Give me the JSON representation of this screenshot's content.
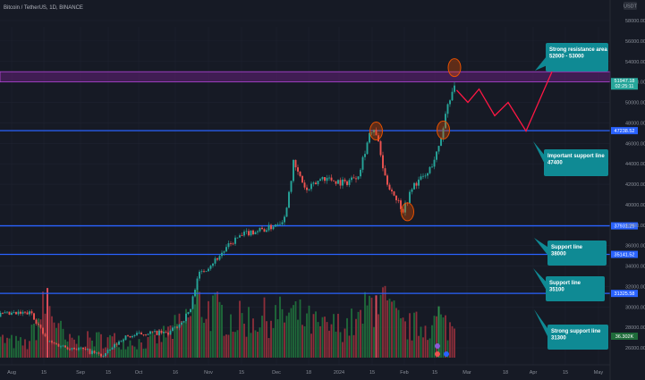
{
  "header": {
    "title": "Bitcoin / TetherUS, 1D, BINANCE",
    "currency": "USDT"
  },
  "colors": {
    "background": "#161a25",
    "up": "#26a69a",
    "down": "#ef5350",
    "volume_up": "#1f6b3a",
    "volume_down": "#8e2f3a",
    "support_line": "#2962ff",
    "resistance": "#8e24aa",
    "callout": "#0f8a94",
    "forecast": "#ff1744",
    "marker": "#e65100",
    "price_tag": "#26a69a",
    "grid": "#1f2330",
    "axis_text": "#8a8f99"
  },
  "chart_data": {
    "type": "candlestick",
    "symbol": "Bitcoin / TetherUS",
    "interval": "1D",
    "exchange": "BINANCE",
    "ylim": [
      26000,
      58000
    ],
    "y_ticks": [
      "58000.00",
      "56000.00",
      "54000.00",
      "52000.00",
      "50000.00",
      "48000.00",
      "46000.00",
      "44000.00",
      "42000.00",
      "40000.00",
      "38000.00",
      "36000.00",
      "34000.00",
      "32000.00",
      "30000.00",
      "28000.00",
      "26000.00"
    ],
    "x_ticks": [
      "Aug",
      "15",
      "Sep",
      "15",
      "Oct",
      "16",
      "Nov",
      "15",
      "Dec",
      "18",
      "2024",
      "15",
      "Feb",
      "15",
      "Mar",
      "18",
      "Apr",
      "15",
      "May"
    ],
    "price_series": [
      {
        "date": "2023-07-24",
        "price": 29200
      },
      {
        "date": "2023-08-01",
        "price": 29300
      },
      {
        "date": "2023-08-10",
        "price": 29400
      },
      {
        "date": "2023-08-17",
        "price": 26600
      },
      {
        "date": "2023-08-25",
        "price": 26100
      },
      {
        "date": "2023-09-01",
        "price": 25900
      },
      {
        "date": "2023-09-11",
        "price": 25200
      },
      {
        "date": "2023-09-20",
        "price": 27000
      },
      {
        "date": "2023-10-01",
        "price": 27500
      },
      {
        "date": "2023-10-10",
        "price": 27400
      },
      {
        "date": "2023-10-16",
        "price": 28500
      },
      {
        "date": "2023-10-20",
        "price": 29800
      },
      {
        "date": "2023-10-23",
        "price": 33000
      },
      {
        "date": "2023-10-31",
        "price": 34600
      },
      {
        "date": "2023-11-09",
        "price": 36600
      },
      {
        "date": "2023-11-15",
        "price": 37300
      },
      {
        "date": "2023-11-24",
        "price": 37700
      },
      {
        "date": "2023-12-01",
        "price": 38700
      },
      {
        "date": "2023-12-05",
        "price": 44000
      },
      {
        "date": "2023-12-11",
        "price": 41300
      },
      {
        "date": "2023-12-18",
        "price": 42700
      },
      {
        "date": "2023-12-28",
        "price": 42100
      },
      {
        "date": "2024-01-03",
        "price": 43000
      },
      {
        "date": "2024-01-08",
        "price": 46900
      },
      {
        "date": "2024-01-11",
        "price": 47000
      },
      {
        "date": "2024-01-15",
        "price": 42500
      },
      {
        "date": "2024-01-23",
        "price": 39500
      },
      {
        "date": "2024-01-28",
        "price": 42000
      },
      {
        "date": "2024-02-03",
        "price": 43000
      },
      {
        "date": "2024-02-08",
        "price": 45500
      },
      {
        "date": "2024-02-12",
        "price": 49900
      },
      {
        "date": "2024-02-15",
        "price": 51900
      }
    ],
    "volume_series": [
      {
        "date": "2023-07-24",
        "volume": 14
      },
      {
        "date": "2023-08-08",
        "volume": 10
      },
      {
        "date": "2023-08-17",
        "volume": 42
      },
      {
        "date": "2023-08-25",
        "volume": 12
      },
      {
        "date": "2023-09-11",
        "volume": 14
      },
      {
        "date": "2023-10-01",
        "volume": 11
      },
      {
        "date": "2023-10-16",
        "volume": 24
      },
      {
        "date": "2023-10-23",
        "volume": 40
      },
      {
        "date": "2023-11-09",
        "volume": 28
      },
      {
        "date": "2023-12-05",
        "volume": 32
      },
      {
        "date": "2023-12-18",
        "volume": 22
      },
      {
        "date": "2024-01-03",
        "volume": 26
      },
      {
        "date": "2024-01-11",
        "volume": 46
      },
      {
        "date": "2024-01-23",
        "volume": 22
      },
      {
        "date": "2024-02-08",
        "volume": 26
      },
      {
        "date": "2024-02-15",
        "volume": 22
      }
    ],
    "last_price": {
      "value": "51947.18",
      "countdown": "02:25:11"
    },
    "volume_label": "36.302K",
    "horizontal_levels": [
      {
        "price": 47238.52,
        "label": "47238.52",
        "note": [
          "Important support line",
          "47400"
        ]
      },
      {
        "price": 37931.29,
        "label": "37931.29",
        "note": [
          "Support line",
          "38000"
        ]
      },
      {
        "price": 35141.52,
        "label": "35141.52",
        "note": [
          "Support line",
          "35100"
        ]
      },
      {
        "price": 31325.58,
        "label": "31325.58",
        "note": [
          "Strong support line",
          "31300"
        ]
      }
    ],
    "resistance_zone": {
      "from": 52000,
      "to": 53000,
      "note": [
        "Strong resistance area",
        "52000 - 53000"
      ]
    },
    "markers": [
      {
        "date": "2024-01-11",
        "price": 47200
      },
      {
        "date": "2024-01-25",
        "price": 39300
      },
      {
        "date": "2024-02-10",
        "price": 47300
      },
      {
        "date": "2024-02-15",
        "price": 53400
      }
    ],
    "forecast_path": [
      {
        "date": "2024-02-16",
        "price": 51200
      },
      {
        "date": "2024-02-21",
        "price": 50000
      },
      {
        "date": "2024-02-26",
        "price": 51300
      },
      {
        "date": "2024-03-04",
        "price": 48700
      },
      {
        "date": "2024-03-10",
        "price": 50000
      },
      {
        "date": "2024-03-18",
        "price": 47200
      },
      {
        "date": "2024-03-31",
        "price": 53700
      }
    ]
  }
}
